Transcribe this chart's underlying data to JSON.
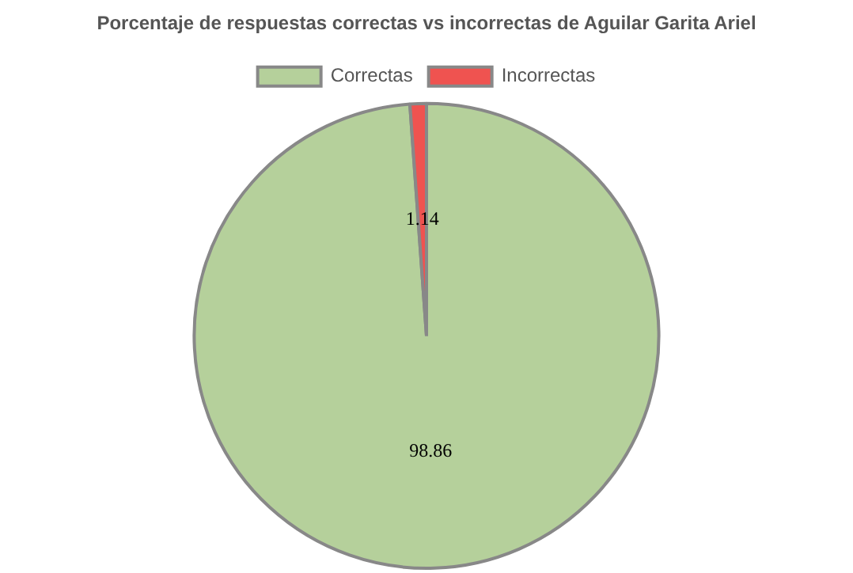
{
  "chart_data": {
    "type": "pie",
    "title": "Porcentaje de respuestas correctas vs incorrectas de Aguilar Garita Ariel",
    "categories": [
      "Correctas",
      "Incorrectas"
    ],
    "values": [
      98.86,
      1.14
    ],
    "colors": [
      "#b5d09b",
      "#ef5350"
    ],
    "legend": "top",
    "data_labels": true
  }
}
